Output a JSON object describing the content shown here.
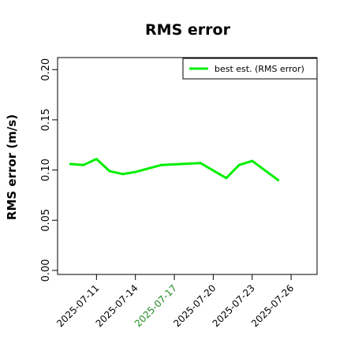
{
  "chart_data": {
    "type": "line",
    "title": "RMS error",
    "xlabel": "",
    "ylabel": "RMS error (m/s)",
    "x": [
      "2025-07-09",
      "2025-07-10",
      "2025-07-11",
      "2025-07-12",
      "2025-07-13",
      "2025-07-14",
      "2025-07-16",
      "2025-07-19",
      "2025-07-21",
      "2025-07-22",
      "2025-07-23",
      "2025-07-25"
    ],
    "series": [
      {
        "name": "best est. (RMS error)",
        "values": [
          0.106,
          0.105,
          0.111,
          0.099,
          0.096,
          0.098,
          0.105,
          0.107,
          0.092,
          0.105,
          0.109,
          0.09
        ]
      }
    ],
    "xlim": [
      "2025-07-08",
      "2025-07-28"
    ],
    "ylim": [
      -0.004,
      0.212
    ],
    "xticks": [
      "2025-07-11",
      "2025-07-14",
      "2025-07-17",
      "2025-07-20",
      "2025-07-23",
      "2025-07-26"
    ],
    "highlight_tick": "2025-07-17",
    "yticks": [
      0.0,
      0.05,
      0.1,
      0.15,
      0.2
    ],
    "ytick_labels": [
      "0.00",
      "0.05",
      "0.10",
      "0.15",
      "0.20"
    ],
    "grid": false,
    "legend_position": "top-right",
    "colors": {
      "series": "#00ee00",
      "highlight": "#228b22",
      "text": "#000000"
    }
  }
}
